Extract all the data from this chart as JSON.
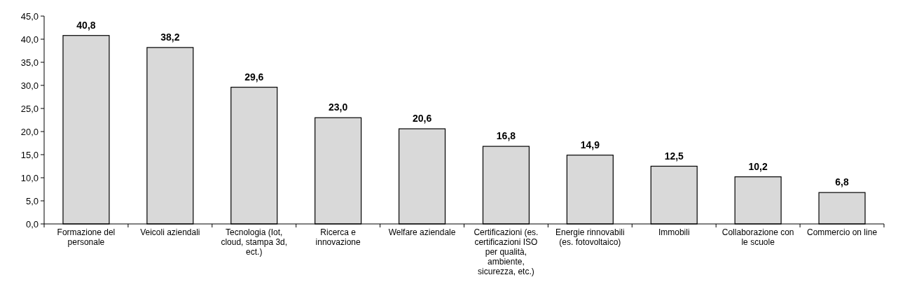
{
  "chart_data": {
    "type": "bar",
    "categories": [
      "Formazione del personale",
      "Veicoli aziendali",
      "Tecnologia (Iot, cloud, stampa 3d, ect.)",
      "Ricerca e innovazione",
      "Welfare aziendale",
      "Certificazioni (es. certificazioni ISO per qualità, ambiente, sicurezza, etc.)",
      "Energie rinnovabili (es. fotovoltaico)",
      "Immobili",
      "Collaborazione con le scuole",
      "Commercio on line"
    ],
    "values": [
      40.8,
      38.2,
      29.6,
      23.0,
      20.6,
      16.8,
      14.9,
      12.5,
      10.2,
      6.8
    ],
    "value_labels": [
      "40,8",
      "38,2",
      "29,6",
      "23,0",
      "20,6",
      "16,8",
      "14,9",
      "12,5",
      "10,2",
      "6,8"
    ],
    "color": "#d9d9d9",
    "ylim": [
      0,
      45
    ],
    "yticks": [
      {
        "value": 0,
        "label": "0,0"
      },
      {
        "value": 5,
        "label": "5,0"
      },
      {
        "value": 10,
        "label": "10,0"
      },
      {
        "value": 15,
        "label": "15,0"
      },
      {
        "value": 20,
        "label": "20,0"
      },
      {
        "value": 25,
        "label": "25,0"
      },
      {
        "value": 30,
        "label": "30,0"
      },
      {
        "value": 35,
        "label": "35,0"
      },
      {
        "value": 40,
        "label": "40,0"
      },
      {
        "value": 45,
        "label": "45,0"
      }
    ],
    "grid": false
  }
}
